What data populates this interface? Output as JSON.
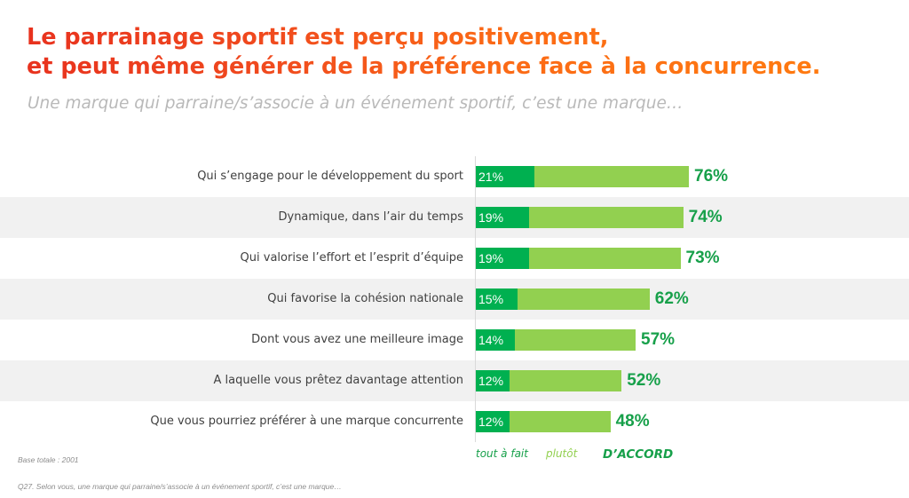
{
  "header": {
    "title_line1": "Le parrainage sportif est perçu positivement,",
    "title_line2": "et peut même générer de la préférence face à la concurrence.",
    "subtitle": "Une marque qui parraine/s’associe à un événement sportif, c’est une marque…"
  },
  "colors": {
    "title_start": "#e8321e",
    "title_end": "#ff7a10",
    "tout_a_fait": "#00b050",
    "plutot": "#92d050",
    "total_label": "#17a04a",
    "stripe": "#f1f1f1"
  },
  "chart_data": {
    "type": "bar",
    "orientation": "horizontal",
    "stacked": true,
    "title": "Une marque qui parraine/s’associe à un événement sportif, c’est une marque…",
    "xlabel": "",
    "ylabel": "",
    "xlim": [
      0,
      100
    ],
    "grid": false,
    "legend_position": "bottom",
    "categories": [
      "Qui s’engage pour le développement du sport",
      "Dynamique, dans l’air du temps",
      "Qui valorise l’effort et l’esprit d’équipe",
      "Qui favorise la cohésion nationale",
      "Dont vous avez une meilleure image",
      "A laquelle vous prêtez davantage attention",
      "Que vous pourriez préférer à une marque concurrente"
    ],
    "series": [
      {
        "name": "tout à fait",
        "values": [
          21,
          19,
          19,
          15,
          14,
          12,
          12
        ]
      },
      {
        "name": "plutôt",
        "values": [
          55,
          55,
          54,
          47,
          43,
          40,
          36
        ]
      }
    ],
    "totals": [
      76,
      74,
      73,
      62,
      57,
      52,
      48
    ],
    "totals_label": "D’ACCORD",
    "value_suffix": "%"
  },
  "legend": {
    "tout_a_fait": "tout à fait",
    "plutot": "plutôt",
    "accord": "D’ACCORD"
  },
  "footer": {
    "base": "Base totale : 2001",
    "question": "Q27. Selon vous, une marque qui parraine/s’associe à un événement sportif, c’est une marque…"
  }
}
